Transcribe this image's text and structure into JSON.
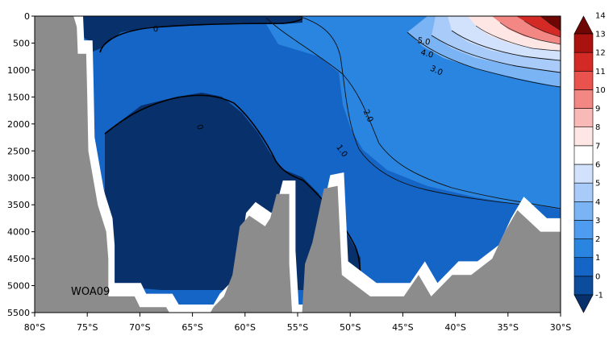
{
  "chart_data": {
    "type": "heatmap",
    "title": "",
    "xlabel": "",
    "ylabel": "",
    "x_ticks": [
      "80°S",
      "75°S",
      "70°S",
      "65°S",
      "60°S",
      "55°S",
      "50°S",
      "45°S",
      "40°S",
      "35°S",
      "30°S"
    ],
    "x_range_deg": [
      -80,
      -30
    ],
    "y_ticks": [
      0,
      500,
      1000,
      1500,
      2000,
      2500,
      3000,
      3500,
      4000,
      4500,
      5000,
      5500
    ],
    "y_range_m": [
      0,
      5500
    ],
    "y_reversed": true,
    "colorbar": {
      "levels": [
        -1,
        0,
        1,
        2,
        3,
        4,
        5,
        6,
        7,
        8,
        9,
        10,
        11,
        12,
        13,
        14
      ],
      "labels": [
        "-1",
        "0",
        "1",
        "2",
        "3",
        "4",
        "5",
        "6",
        "7",
        "8",
        "9",
        "10",
        "11",
        "12",
        "13",
        "14"
      ],
      "colors": [
        "#08306b",
        "#0b4d9c",
        "#1565c6",
        "#2a85e0",
        "#4e9cf0",
        "#7ab4f5",
        "#a8cbf9",
        "#d2e2fc",
        "#ffffff",
        "#fde6e4",
        "#f8b9b7",
        "#f28783",
        "#ea524e",
        "#d42a26",
        "#a9120f",
        "#6e0604"
      ]
    },
    "contour_labels": [
      {
        "text": "0",
        "lat": -64.3,
        "depth": 2060,
        "rotate": 70
      },
      {
        "text": "0",
        "lat": -68.5,
        "depth": 240,
        "rotate": -5
      },
      {
        "text": "1.0",
        "lat": -50.8,
        "depth": 2500,
        "rotate": 55
      },
      {
        "text": "2.0",
        "lat": -48.3,
        "depth": 1850,
        "rotate": 65
      },
      {
        "text": "3.0",
        "lat": -41.8,
        "depth": 1010,
        "rotate": 25
      },
      {
        "text": "4.0",
        "lat": -42.7,
        "depth": 700,
        "rotate": 15
      },
      {
        "text": "5.0",
        "lat": -43.0,
        "depth": 470,
        "rotate": 10
      }
    ],
    "annotation": "WOA09",
    "bathymetry_lat": [
      -80,
      -76.3,
      -76,
      -75.9,
      -75.1,
      -75,
      -74.9,
      -74,
      -73.2,
      -73,
      -73,
      -70.5,
      -70,
      -67.5,
      -66.9,
      -66.5,
      -65.8,
      -63.6,
      -63,
      -62,
      -61.2,
      -60.5,
      -59.6,
      -58.1,
      -57.6,
      -57,
      -56.5,
      -55.8,
      -55.8,
      -55.5,
      -54.9,
      -54.6,
      -54.3,
      -53.6,
      -52.5,
      -51.2,
      -50.8,
      -48.1,
      -45.4,
      -44.9,
      -43.5,
      -42.3,
      -40.3,
      -38.5,
      -36.5,
      -35.3,
      -34.1,
      -31.9,
      -30.0,
      -30.0
    ],
    "bathymetry_depth": [
      0,
      0,
      200,
      700,
      700,
      1500,
      2500,
      3500,
      4000,
      4500,
      5200,
      5200,
      5400,
      5400,
      5600,
      5600,
      5600,
      5600,
      5400,
      5200,
      4800,
      3900,
      3700,
      3900,
      3750,
      3300,
      3300,
      3300,
      4600,
      5600,
      5600,
      5600,
      4600,
      4200,
      3200,
      3150,
      4800,
      5200,
      5200,
      5200,
      4800,
      5200,
      4800,
      4800,
      4500,
      4000,
      3600,
      4000,
      4000,
      5500
    ]
  }
}
